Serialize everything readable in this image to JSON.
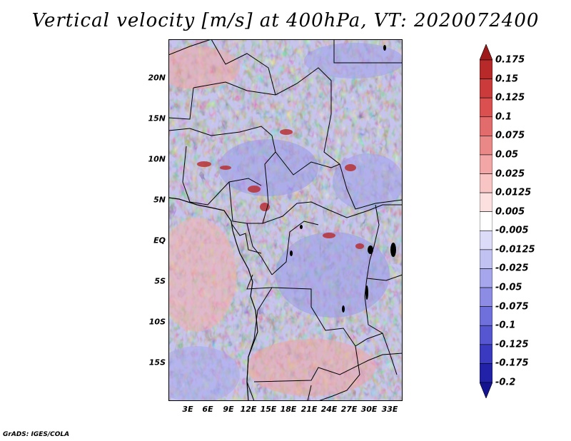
{
  "title": "Vertical velocity [m/s] at 400hPa, VT: 2020072400",
  "footer": "GrADS: IGES/COLA",
  "lat_labels": [
    "20N",
    "15N",
    "10N",
    "5N",
    "EQ",
    "5S",
    "10S",
    "15S"
  ],
  "lon_labels": [
    "3E",
    "6E",
    "9E",
    "12E",
    "15E",
    "18E",
    "21E",
    "24E",
    "27E",
    "30E",
    "33E"
  ],
  "colorbar": {
    "labels": [
      "0.175",
      "0.15",
      "0.125",
      "0.1",
      "0.075",
      "0.05",
      "0.025",
      "0.0125",
      "0.005",
      "-0.005",
      "-0.0125",
      "-0.025",
      "-0.05",
      "-0.075",
      "-0.1",
      "-0.125",
      "-0.175",
      "-0.2"
    ],
    "colors": [
      "#9e1a1a",
      "#b82a2a",
      "#cc3b3b",
      "#da5050",
      "#e26b6b",
      "#ea8888",
      "#f2a6a6",
      "#f8c4c4",
      "#fce0e0",
      "#ffffff",
      "#dcdcf8",
      "#c2c2f2",
      "#a6a6ec",
      "#8c8ce4",
      "#7070dc",
      "#5656d0",
      "#3a3ac0",
      "#2222a8",
      "#141490"
    ]
  },
  "map_colors": {
    "red": "#f0a0a0",
    "blue": "#a8a8f0",
    "deep_red": "#b82a2a",
    "deep_blue": "#5656d0"
  }
}
